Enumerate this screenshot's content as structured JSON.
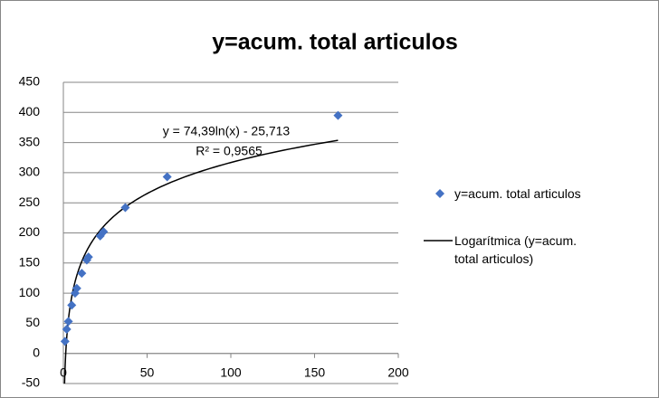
{
  "chart_data": {
    "type": "scatter",
    "title": "y=acum. total articulos",
    "series": [
      {
        "name": "y=acum. total articulos",
        "color": "#4472c4",
        "x": [
          1,
          2,
          3,
          5,
          7,
          8,
          11,
          14,
          15,
          22,
          24,
          37,
          62,
          164
        ],
        "values": [
          20,
          40,
          53,
          80,
          100,
          108,
          133,
          155,
          160,
          195,
          202,
          242,
          293,
          395
        ]
      }
    ],
    "trendline": {
      "name": "Logarítmica (y=acum. total articulos)",
      "type": "log",
      "color": "#000000",
      "a": 74.39,
      "b": -25.713,
      "equation": "y = 74,39ln(x) - 25,713",
      "r2_label": "R² = 0,9565"
    },
    "xlim": [
      0,
      200
    ],
    "xticks": [
      0,
      50,
      100,
      150,
      200
    ],
    "ylim": [
      -50,
      450
    ],
    "yticks": [
      -50,
      0,
      50,
      100,
      150,
      200,
      250,
      300,
      350,
      400,
      450
    ],
    "grid": true,
    "legend": "right"
  }
}
